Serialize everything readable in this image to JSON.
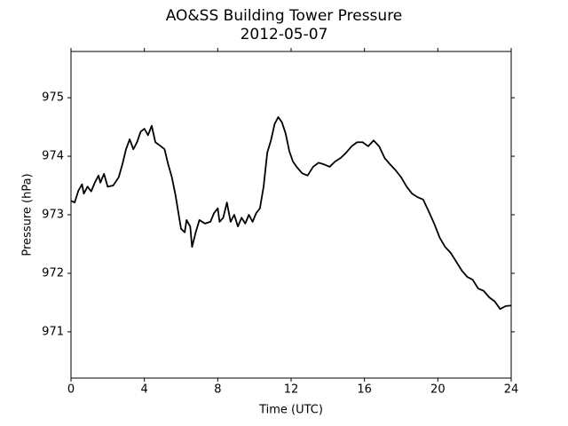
{
  "chart_data": {
    "type": "line",
    "title": "AO&SS Building Tower Pressure",
    "subtitle": "2012-05-07",
    "x_label": "Time (UTC)",
    "y_label": "Pressure (hPa)",
    "xlim": [
      0,
      24
    ],
    "xticks": [
      0,
      4,
      8,
      12,
      16,
      20,
      24
    ],
    "ylim": [
      970.21,
      975.79
    ],
    "yticks": [
      971,
      972,
      973,
      974,
      975
    ],
    "grid": false,
    "series": [
      {
        "color": "#000000",
        "x": [
          0,
          0.2,
          0.4,
          0.6,
          0.7,
          0.9,
          1.1,
          1.3,
          1.5,
          1.6,
          1.8,
          2.0,
          2.3,
          2.6,
          2.8,
          3.0,
          3.2,
          3.4,
          3.6,
          3.8,
          4.0,
          4.2,
          4.4,
          4.6,
          4.9,
          5.1,
          5.3,
          5.5,
          5.7,
          5.9,
          6.0,
          6.2,
          6.3,
          6.5,
          6.6,
          6.8,
          7.0,
          7.3,
          7.6,
          7.8,
          8.0,
          8.1,
          8.3,
          8.5,
          8.7,
          8.9,
          9.1,
          9.3,
          9.5,
          9.7,
          9.9,
          10.1,
          10.3,
          10.5,
          10.7,
          10.9,
          11.1,
          11.3,
          11.5,
          11.7,
          11.9,
          12.1,
          12.3,
          12.6,
          12.9,
          13.2,
          13.5,
          13.8,
          14.1,
          14.4,
          14.7,
          15.0,
          15.3,
          15.6,
          15.9,
          16.2,
          16.5,
          16.8,
          17.1,
          17.4,
          17.7,
          18.0,
          18.3,
          18.6,
          18.9,
          19.2,
          19.5,
          19.8,
          20.1,
          20.4,
          20.7,
          21.0,
          21.3,
          21.6,
          21.9,
          22.2,
          22.5,
          22.8,
          23.1,
          23.4,
          23.7,
          24.0
        ],
        "values": [
          973.24,
          973.21,
          973.41,
          973.52,
          973.36,
          973.48,
          973.4,
          973.55,
          973.67,
          973.55,
          973.7,
          973.48,
          973.5,
          973.64,
          973.86,
          974.12,
          974.29,
          974.12,
          974.24,
          974.42,
          974.47,
          974.36,
          974.52,
          974.24,
          974.17,
          974.12,
          973.86,
          973.64,
          973.33,
          972.95,
          972.76,
          972.7,
          972.91,
          972.8,
          972.45,
          972.7,
          972.91,
          972.85,
          972.88,
          973.03,
          973.11,
          972.88,
          972.95,
          973.21,
          972.88,
          973.0,
          972.8,
          972.95,
          972.85,
          973.0,
          972.88,
          973.03,
          973.11,
          973.48,
          974.06,
          974.27,
          974.55,
          974.67,
          974.58,
          974.39,
          974.09,
          973.91,
          973.82,
          973.71,
          973.67,
          973.82,
          973.89,
          973.86,
          973.82,
          973.91,
          973.97,
          974.06,
          974.17,
          974.24,
          974.24,
          974.17,
          974.27,
          974.17,
          973.97,
          973.86,
          973.76,
          973.64,
          973.48,
          973.36,
          973.3,
          973.26,
          973.06,
          972.85,
          972.61,
          972.45,
          972.35,
          972.2,
          972.05,
          971.94,
          971.89,
          971.74,
          971.7,
          971.59,
          971.52,
          971.39,
          971.44,
          971.45
        ]
      }
    ]
  }
}
